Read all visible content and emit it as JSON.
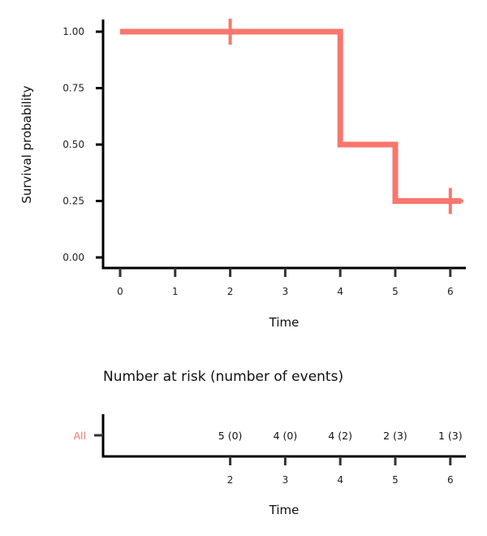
{
  "chart_data": [
    {
      "type": "line",
      "subtype": "kaplan-meier",
      "title": "",
      "xlabel": "Time",
      "ylabel": "Survival probability",
      "xlim": [
        0,
        6
      ],
      "ylim": [
        0,
        1
      ],
      "x_ticks": [
        0,
        1,
        2,
        3,
        4,
        5,
        6
      ],
      "y_ticks": [
        "0.00",
        "0.25",
        "0.50",
        "0.75",
        "1.00"
      ],
      "y_tick_values": [
        0,
        0.25,
        0.5,
        0.75,
        1.0
      ],
      "series": [
        {
          "name": "All",
          "color": "#F8766D",
          "steps": [
            {
              "x": 0,
              "y": 1.0
            },
            {
              "x": 4,
              "y": 0.5
            },
            {
              "x": 5,
              "y": 0.25
            },
            {
              "x": 6.2,
              "y": 0.25
            }
          ],
          "censored": [
            {
              "x": 2,
              "y": 1.0
            },
            {
              "x": 6,
              "y": 0.25
            }
          ]
        }
      ]
    },
    {
      "type": "table",
      "title": "Number at risk (number of events)",
      "xlabel": "Time",
      "x_ticks": [
        2,
        3,
        4,
        5,
        6
      ],
      "rows": [
        {
          "label": "All",
          "color": "#F8766D",
          "cells": [
            {
              "x": 2,
              "text": "5 (0)"
            },
            {
              "x": 3,
              "text": "4 (0)"
            },
            {
              "x": 4,
              "text": "4 (2)"
            },
            {
              "x": 5,
              "text": "2 (3)"
            },
            {
              "x": 6,
              "text": "1 (3)"
            }
          ]
        }
      ]
    }
  ]
}
